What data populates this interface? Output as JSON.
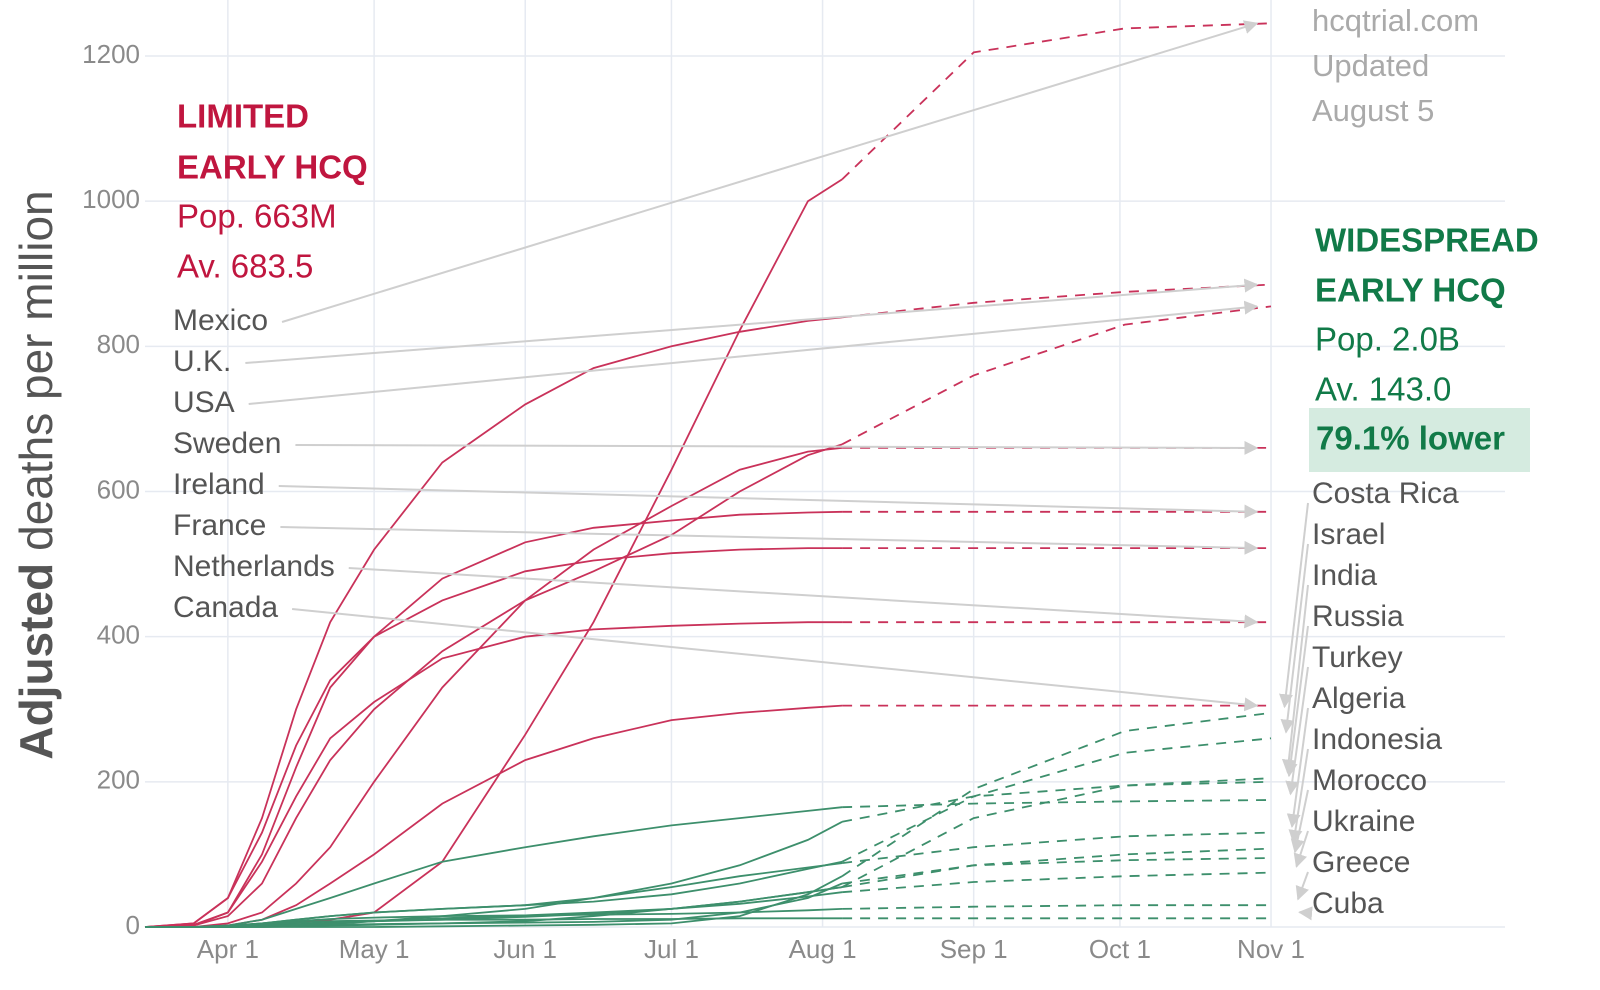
{
  "chart_data": {
    "type": "line",
    "y_label": {
      "bold": "Adjusted",
      "rest": "deaths per million"
    },
    "source": [
      "hcqtrial.com",
      "Updated",
      "August 5"
    ],
    "limited": {
      "title": [
        "LIMITED",
        "EARLY HCQ"
      ],
      "pop": "Pop. 663M",
      "avg": "Av. 683.5",
      "color": "#c0163f"
    },
    "widespread": {
      "title": [
        "WIDESPREAD",
        "EARLY HCQ"
      ],
      "pop": "Pop. 2.0B",
      "avg": "Av. 143.0",
      "diff": "79.1% lower",
      "color": "#117a48",
      "highlight": "#d5ebe0"
    },
    "xlim": [
      74,
      353
    ],
    "ylim": [
      0,
      1200
    ],
    "xticks": [
      {
        "value": 91,
        "label": "Apr 1"
      },
      {
        "value": 121,
        "label": "May 1"
      },
      {
        "value": 152,
        "label": "Jun 1"
      },
      {
        "value": 182,
        "label": "Jul 1"
      },
      {
        "value": 213,
        "label": "Aug 1"
      },
      {
        "value": 244,
        "label": "Sep 1"
      },
      {
        "value": 274,
        "label": "Oct 1"
      },
      {
        "value": 305,
        "label": "Nov 1"
      }
    ],
    "yticks": [
      0,
      200,
      400,
      600,
      800,
      1000,
      1200
    ],
    "grid": true,
    "x": [
      74,
      84,
      91,
      98,
      105,
      112,
      121,
      135,
      152,
      166,
      182,
      196,
      210,
      217
    ],
    "projected_x": [
      217,
      244,
      275,
      305
    ],
    "series": [
      {
        "name": "Mexico",
        "group": "limited",
        "color": "#c9325a",
        "values": [
          0,
          0,
          1,
          3,
          6,
          10,
          20,
          90,
          265,
          420,
          630,
          822,
          1000,
          1030
        ],
        "projected_values": [
          1030,
          1205,
          1238,
          1245
        ]
      },
      {
        "name": "U.K.",
        "group": "limited",
        "color": "#c9325a",
        "values": [
          0,
          5,
          40,
          150,
          300,
          420,
          520,
          640,
          720,
          770,
          800,
          820,
          835,
          840
        ],
        "projected_values": [
          840,
          860,
          875,
          885
        ]
      },
      {
        "name": "USA",
        "group": "limited",
        "color": "#c9325a",
        "values": [
          0,
          2,
          15,
          60,
          150,
          230,
          300,
          380,
          450,
          490,
          540,
          600,
          650,
          665
        ],
        "projected_values": [
          665,
          760,
          830,
          855
        ]
      },
      {
        "name": "Sweden",
        "group": "limited",
        "color": "#c9325a",
        "values": [
          0,
          0,
          5,
          20,
          60,
          110,
          200,
          330,
          450,
          520,
          580,
          630,
          655,
          660
        ],
        "projected_values": [
          660,
          660,
          660,
          660
        ]
      },
      {
        "name": "Ireland",
        "group": "limited",
        "color": "#c9325a",
        "values": [
          0,
          3,
          20,
          100,
          220,
          330,
          400,
          480,
          530,
          550,
          560,
          568,
          571,
          572
        ],
        "projected_values": [
          572,
          572,
          572,
          572
        ]
      },
      {
        "name": "France",
        "group": "limited",
        "color": "#c9325a",
        "values": [
          0,
          5,
          40,
          130,
          250,
          340,
          400,
          450,
          490,
          505,
          515,
          520,
          522,
          522
        ],
        "projected_values": [
          522,
          522,
          522,
          522
        ]
      },
      {
        "name": "Netherlands",
        "group": "limited",
        "color": "#c9325a",
        "values": [
          0,
          2,
          20,
          90,
          180,
          260,
          310,
          370,
          400,
          410,
          415,
          418,
          420,
          420
        ],
        "projected_values": [
          420,
          420,
          420,
          420
        ]
      },
      {
        "name": "Canada",
        "group": "limited",
        "color": "#c9325a",
        "values": [
          0,
          0,
          2,
          10,
          30,
          60,
          100,
          170,
          230,
          260,
          285,
          295,
          302,
          305
        ],
        "projected_values": [
          305,
          305,
          305,
          305
        ]
      },
      {
        "name": "Costa Rica",
        "group": "widespread",
        "color": "#3d8f6c",
        "values": [
          0,
          0,
          0,
          0,
          0,
          0,
          0,
          1,
          2,
          3,
          5,
          15,
          45,
          70
        ],
        "projected_values": [
          70,
          190,
          270,
          295
        ]
      },
      {
        "name": "Israel",
        "group": "widespread",
        "color": "#3d8f6c",
        "values": [
          0,
          0,
          1,
          5,
          10,
          15,
          20,
          25,
          30,
          35,
          45,
          60,
          80,
          90
        ],
        "projected_values": [
          90,
          180,
          240,
          260
        ]
      },
      {
        "name": "India",
        "group": "widespread",
        "color": "#3d8f6c",
        "values": [
          0,
          0,
          0,
          0,
          1,
          2,
          3,
          5,
          8,
          15,
          25,
          35,
          48,
          55
        ],
        "projected_values": [
          55,
          150,
          195,
          205
        ]
      },
      {
        "name": "Russia",
        "group": "widespread",
        "color": "#3d8f6c",
        "values": [
          0,
          0,
          0,
          1,
          2,
          4,
          8,
          15,
          25,
          40,
          60,
          85,
          120,
          145
        ],
        "projected_values": [
          145,
          180,
          195,
          200
        ]
      },
      {
        "name": "Turkey",
        "group": "widespread",
        "color": "#3d8f6c",
        "values": [
          0,
          0,
          2,
          10,
          25,
          40,
          60,
          90,
          110,
          125,
          140,
          150,
          160,
          165
        ],
        "projected_values": [
          165,
          170,
          173,
          175
        ]
      },
      {
        "name": "Algeria",
        "group": "widespread",
        "color": "#3d8f6c",
        "values": [
          0,
          0,
          1,
          5,
          10,
          15,
          20,
          25,
          30,
          40,
          55,
          70,
          82,
          88
        ],
        "projected_values": [
          88,
          110,
          125,
          130
        ]
      },
      {
        "name": "Indonesia",
        "group": "widespread",
        "color": "#3d8f6c",
        "values": [
          0,
          0,
          1,
          2,
          4,
          6,
          8,
          10,
          14,
          18,
          25,
          35,
          48,
          55
        ],
        "projected_values": [
          55,
          85,
          100,
          108
        ]
      },
      {
        "name": "Morocco",
        "group": "widespread",
        "color": "#3d8f6c",
        "values": [
          0,
          0,
          0,
          1,
          2,
          3,
          4,
          5,
          6,
          7,
          10,
          20,
          40,
          60
        ],
        "projected_values": [
          60,
          85,
          92,
          95
        ]
      },
      {
        "name": "Ukraine",
        "group": "widespread",
        "color": "#3d8f6c",
        "values": [
          0,
          0,
          0,
          1,
          3,
          5,
          8,
          12,
          16,
          20,
          25,
          32,
          42,
          48
        ],
        "projected_values": [
          48,
          62,
          70,
          75
        ]
      },
      {
        "name": "Greece",
        "group": "widespread",
        "color": "#3d8f6c",
        "values": [
          0,
          0,
          2,
          5,
          8,
          11,
          13,
          15,
          16,
          17,
          18,
          20,
          23,
          25
        ],
        "projected_values": [
          25,
          28,
          30,
          30
        ]
      },
      {
        "name": "Cuba",
        "group": "widespread",
        "color": "#3d8f6c",
        "values": [
          0,
          0,
          1,
          3,
          6,
          8,
          9,
          10,
          10,
          11,
          11,
          12,
          12,
          12
        ],
        "projected_values": [
          12,
          12,
          12,
          12
        ]
      }
    ]
  }
}
